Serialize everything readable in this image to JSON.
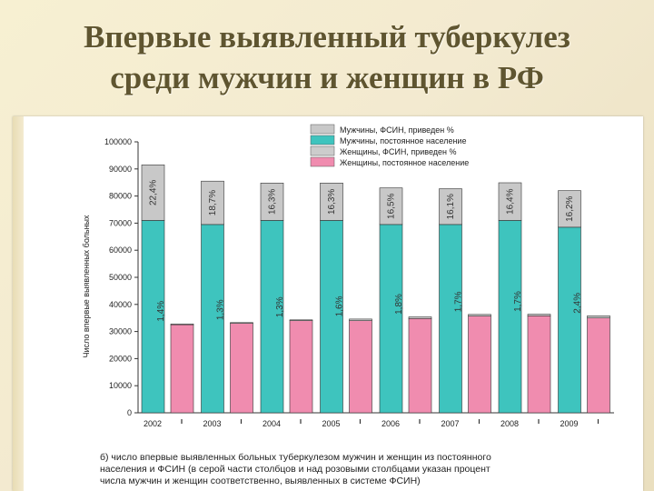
{
  "slide": {
    "title_line1": "Впервые выявленный туберкулез",
    "title_line2": "среди мужчин и женщин в РФ"
  },
  "colors": {
    "men_civil": "#3ec4be",
    "men_fsin": "#c8c8c8",
    "women_civil": "#f08caf",
    "women_fsin": "#cccccc"
  },
  "chart_data": {
    "type": "bar",
    "ylabel": "Число впервые выявленных больных",
    "ylim": [
      0,
      100000
    ],
    "yticks": [
      "0",
      "10000",
      "20000",
      "30000",
      "40000",
      "50000",
      "60000",
      "70000",
      "80000",
      "90000",
      "100000"
    ],
    "ytick_values": [
      0,
      10000,
      20000,
      30000,
      40000,
      50000,
      60000,
      70000,
      80000,
      90000,
      100000
    ],
    "categories": [
      "2002",
      "2003",
      "2004",
      "2005",
      "2006",
      "2007",
      "2008",
      "2009"
    ],
    "legend": [
      "Мужчины, ФСИН, приведен %",
      "Мужчины, постоянное население",
      "Женщины, ФСИН, приведен %",
      "Женщины, постоянное население"
    ],
    "legend_position": "top-right",
    "series": [
      {
        "name": "Мужчины, постоянное население",
        "values": [
          71000,
          69500,
          71000,
          71000,
          69500,
          69500,
          71000,
          68500
        ]
      },
      {
        "name": "Мужчины, ФСИН, приведен %",
        "values": [
          20500,
          16000,
          13800,
          13800,
          13500,
          13200,
          13900,
          13500
        ]
      },
      {
        "name": "Женщины, постоянное население",
        "values": [
          32500,
          33000,
          34000,
          34000,
          34800,
          35700,
          35800,
          35000
        ]
      },
      {
        "name": "Женщины, ФСИН, приведен %",
        "values": [
          300,
          300,
          300,
          600,
          600,
          600,
          600,
          800
        ]
      }
    ],
    "men_labels": [
      "22,4%",
      "18,7%",
      "16,3%",
      "16,3%",
      "16,5%",
      "16,1%",
      "16,4%",
      "16,2%"
    ],
    "women_labels": [
      "1,4%",
      "1,3%",
      "1,3%",
      "1,6%",
      "1,8%",
      "1,7%",
      "1,7%",
      "2,4%"
    ],
    "caption_lines": [
      "б) число впервые выявленных больных туберкулезом мужчин и женщин из постоянного",
      "населения и ФСИН (в серой части столбцов и над розовыми столбцами указан процент",
      "числа мужчин и женщин соответственно, выявленных в системе ФСИН)"
    ]
  }
}
